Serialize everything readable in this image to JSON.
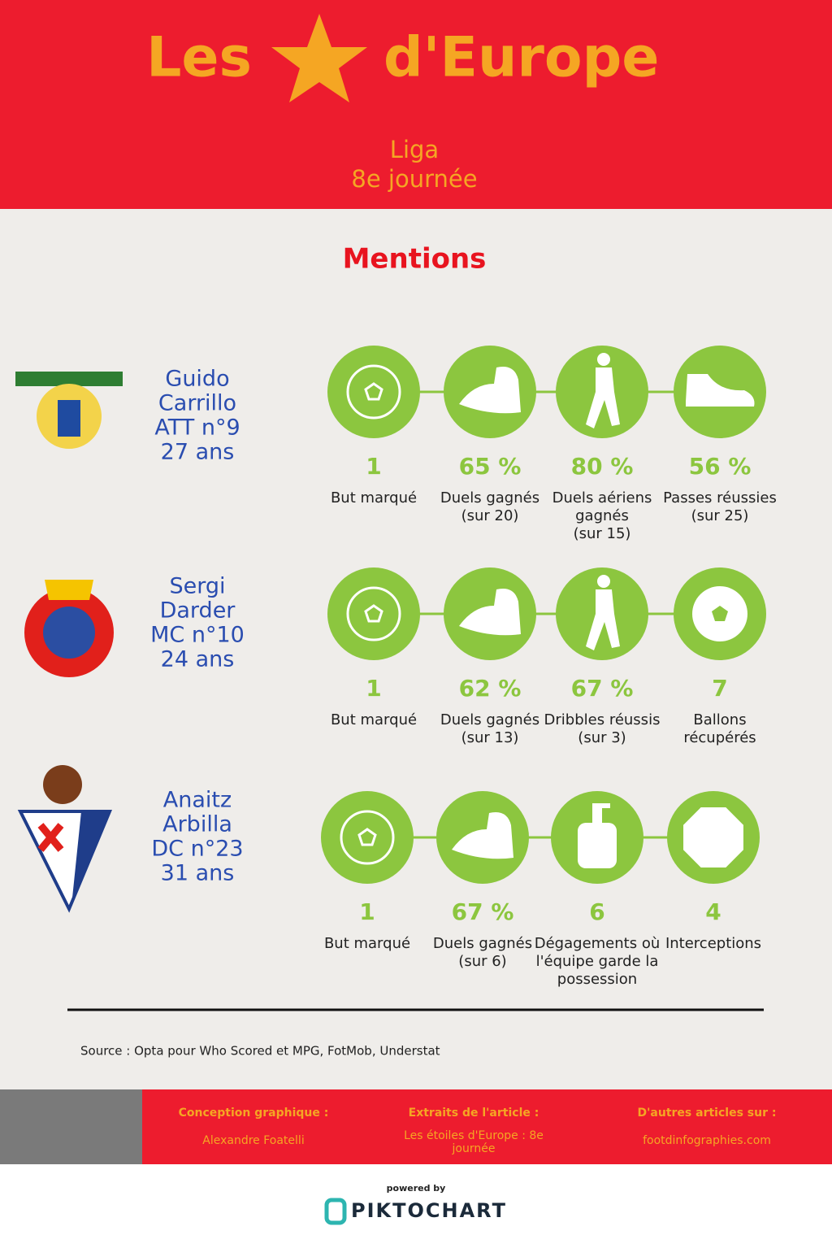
{
  "header": {
    "title_left": "Les",
    "title_right": "d'Europe",
    "subtitle": [
      "Liga",
      "8e journée"
    ]
  },
  "section_title": "Mentions",
  "players": [
    {
      "name": [
        "Guido",
        "Carrillo",
        "ATT n°9",
        "27 ans"
      ],
      "stats": [
        {
          "value": "1",
          "label": [
            "But marqué"
          ]
        },
        {
          "value": "65 %",
          "label": [
            "Duels gagnés",
            "(sur 20)"
          ]
        },
        {
          "value": "80 %",
          "label": [
            "Duels aériens",
            "gagnés",
            "(sur 15)"
          ]
        },
        {
          "value": "56 %",
          "label": [
            "Passes réussies",
            "(sur 25)"
          ]
        }
      ]
    },
    {
      "name": [
        "Sergi",
        "Darder",
        "MC n°10",
        "24 ans"
      ],
      "stats": [
        {
          "value": "1",
          "label": [
            "But marqué"
          ]
        },
        {
          "value": "62 %",
          "label": [
            "Duels gagnés",
            "(sur 13)"
          ]
        },
        {
          "value": "67 %",
          "label": [
            "Dribbles réussis",
            "(sur 3)"
          ]
        },
        {
          "value": "7",
          "label": [
            "Ballons",
            "récupérés"
          ]
        }
      ]
    },
    {
      "name": [
        "Anaitz",
        "Arbilla",
        "DC n°23",
        "31 ans"
      ],
      "stats": [
        {
          "value": "1",
          "label": [
            "But marqué"
          ]
        },
        {
          "value": "67 %",
          "label": [
            "Duels gagnés",
            "(sur 6)"
          ]
        },
        {
          "value": "6",
          "label": [
            "Dégagements où",
            "l'équipe garde la",
            "possession"
          ]
        },
        {
          "value": "4",
          "label": [
            "Interceptions"
          ]
        }
      ]
    }
  ],
  "source": "Source : Opta pour Who Scored et MPG, FotMob, Understat",
  "footer": {
    "columns": [
      {
        "heading": "Conception graphique :",
        "text": [
          "Alexandre Foatelli"
        ]
      },
      {
        "heading": "Extraits de l'article :",
        "text": [
          "Les étoiles d'Europe : 8e",
          "journée"
        ]
      },
      {
        "heading": "D'autres articles sur :",
        "text": [
          "footdinfographies.com"
        ]
      }
    ],
    "powered_by": "powered by",
    "brand": "PIKTOCHART"
  }
}
